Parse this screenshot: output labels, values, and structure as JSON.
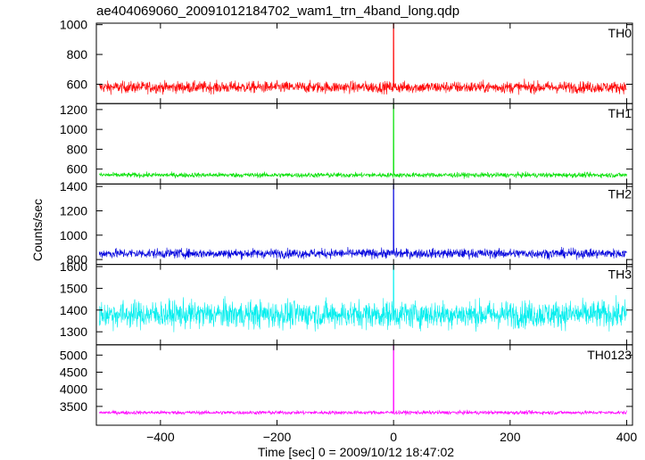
{
  "title": "ae404069060_20091012184702_wam1_trn_4band_long.qdp",
  "chart_data": {
    "type": "line",
    "title": "ae404069060_20091012184702_wam1_trn_4band_long.qdp",
    "xlabel": "Time [sec] 0 = 2009/10/12 18:47:02",
    "ylabel": "Counts/sec",
    "xlim": [
      -510,
      410
    ],
    "xticks": [
      -400,
      -200,
      0,
      200,
      400
    ],
    "xtick_labels": [
      "−400",
      "−200",
      "0",
      "200",
      "400"
    ],
    "grid": false,
    "panels": [
      {
        "name": "TH0",
        "color": "#ff0000",
        "ylim": [
          470,
          1010
        ],
        "yticks": [
          600,
          800,
          1000
        ],
        "ytick_labels": [
          "600",
          "800",
          "1000"
        ],
        "baseline": 580,
        "noise": 28,
        "peak": 1010
      },
      {
        "name": "TH1",
        "color": "#00e000",
        "ylim": [
          450,
          1260
        ],
        "yticks": [
          600,
          800,
          1000,
          1200
        ],
        "ytick_labels": [
          "600",
          "800",
          "1000",
          "1200"
        ],
        "baseline": 540,
        "noise": 18,
        "peak": 1260
      },
      {
        "name": "TH2",
        "color": "#0000dd",
        "ylim": [
          760,
          1420
        ],
        "yticks": [
          800,
          1000,
          1200,
          1400
        ],
        "ytick_labels": [
          "800",
          "1000",
          "1200",
          "1400"
        ],
        "baseline": 850,
        "noise": 28,
        "peak": 1420
      },
      {
        "name": "TH3",
        "color": "#00eeee",
        "ylim": [
          1240,
          1610
        ],
        "yticks": [
          1300,
          1400,
          1500,
          1600
        ],
        "ytick_labels": [
          "1300",
          "1400",
          "1500",
          "1600"
        ],
        "baseline": 1380,
        "noise": 45,
        "peak": 1610
      },
      {
        "name": "TH0123",
        "color": "#ff00ff",
        "ylim": [
          2950,
          5300
        ],
        "yticks": [
          3500,
          4000,
          4500,
          5000
        ],
        "ytick_labels": [
          "3500",
          "4000",
          "4500",
          "5000"
        ],
        "baseline": 3320,
        "noise": 40,
        "peak": 5300
      }
    ]
  }
}
